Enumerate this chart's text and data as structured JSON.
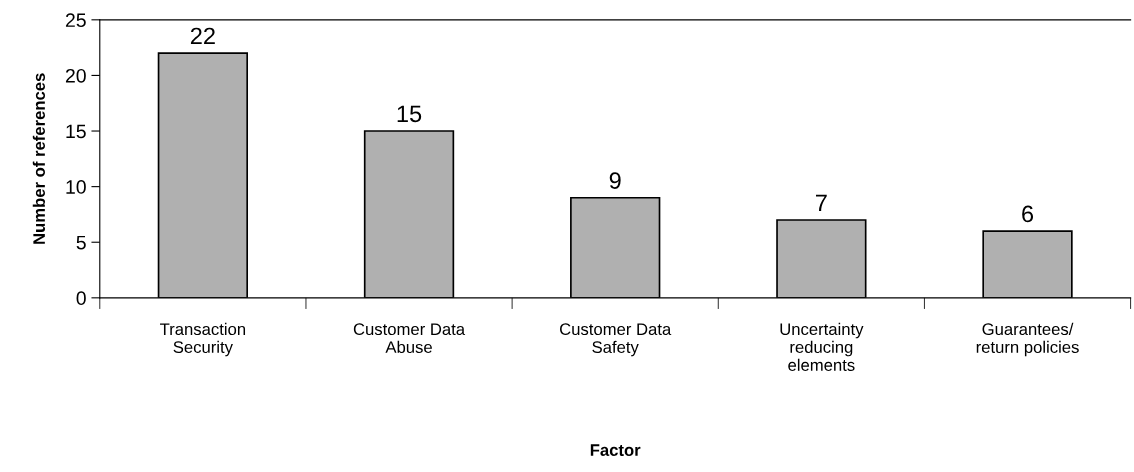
{
  "chart_data": {
    "type": "bar",
    "xlabel": "Factor",
    "ylabel": "Number of references",
    "categories": [
      "Transaction\nSecurity",
      "Customer Data\nAbuse",
      "Customer Data\nSafety",
      "Uncertainty\nreducing\nelements",
      "Guarantees/\nreturn policies"
    ],
    "values": [
      22,
      15,
      9,
      7,
      6
    ],
    "color": "#b0b0b0",
    "ylim": [
      0,
      25
    ],
    "yticks": [
      0,
      5,
      10,
      15,
      20,
      25
    ],
    "grid": false,
    "data_labels": true
  }
}
